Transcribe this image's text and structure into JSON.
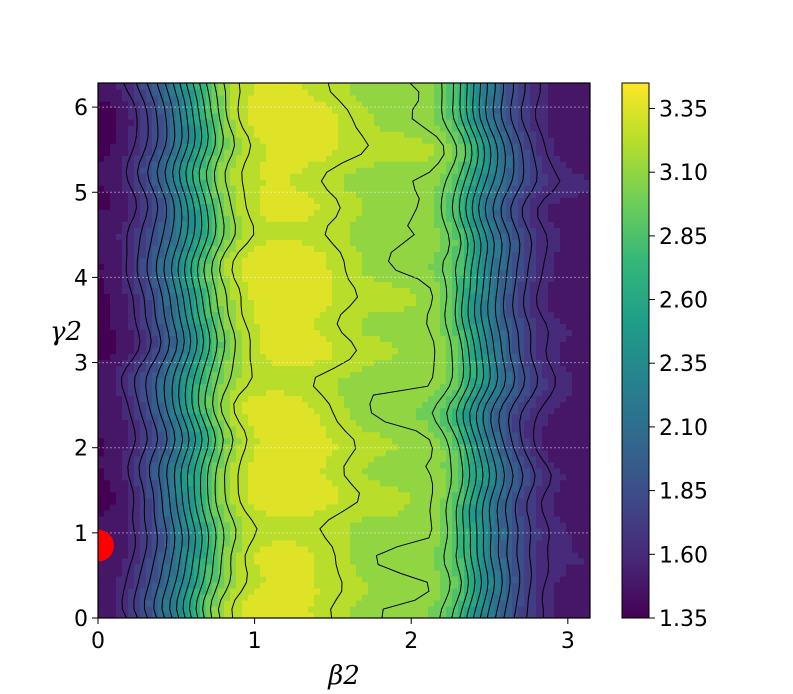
{
  "chart_data": {
    "type": "heatmap",
    "subtype": "filled-contour",
    "xlabel": "β2",
    "ylabel": "γ2",
    "xlim": [
      0,
      3.1416
    ],
    "ylim": [
      0,
      6.2832
    ],
    "x_ticks": [
      0,
      1,
      2,
      3
    ],
    "y_ticks": [
      0,
      1,
      2,
      3,
      4,
      5,
      6
    ],
    "grid": true,
    "grid_axis": "y",
    "colormap": "viridis",
    "colorbar": {
      "min": 1.35,
      "max": 3.45,
      "ticks": [
        "1.35",
        "1.60",
        "1.85",
        "2.10",
        "2.35",
        "2.60",
        "2.85",
        "3.10",
        "3.35"
      ]
    },
    "profile_beta": [
      0,
      0.1,
      0.2,
      0.3,
      0.4,
      0.5,
      0.6,
      0.7,
      0.8,
      0.9,
      1.0,
      1.1,
      1.2,
      1.3,
      1.4,
      1.5,
      1.6,
      1.7,
      1.8,
      1.9,
      2.0,
      2.1,
      2.2,
      2.3,
      2.4,
      2.5,
      2.6,
      2.7,
      2.8,
      2.9,
      3.0,
      3.1416
    ],
    "profile_value": [
      1.4,
      1.45,
      1.58,
      1.75,
      1.95,
      2.2,
      2.5,
      2.8,
      3.05,
      3.2,
      3.29,
      3.32,
      3.33,
      3.32,
      3.29,
      3.25,
      3.2,
      3.16,
      3.14,
      3.13,
      3.12,
      3.1,
      3.02,
      2.85,
      2.55,
      2.25,
      2.0,
      1.8,
      1.65,
      1.55,
      1.5,
      1.48
    ],
    "marker": {
      "beta": 0.0,
      "gamma": 0.85,
      "color": "#ff0000"
    },
    "colors": {
      "background": "#ffffff",
      "contour_line": "#000000",
      "marker": "#ff0000"
    }
  }
}
